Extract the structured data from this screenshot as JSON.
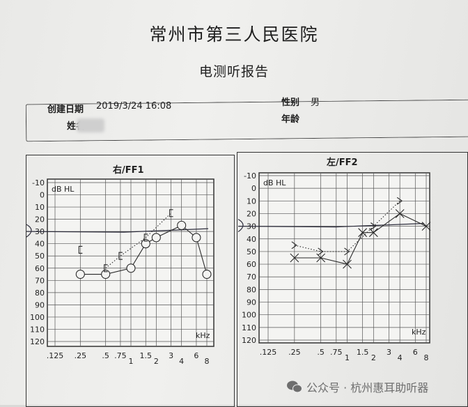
{
  "header": {
    "title": "常州市第三人民医院",
    "subtitle": "电测听报告"
  },
  "info": {
    "date_label": "创建日期",
    "date_value": "2019/3/24 16:08",
    "name_label": "姓名",
    "name_value": "",
    "sex_label": "性别",
    "sex_value": "男",
    "age_label": "年龄",
    "age_value": ""
  },
  "watermark": {
    "icon": "wechat-icon",
    "text": "公众号 · 杭州惠耳助听器"
  },
  "chart_data": [
    {
      "type": "line",
      "title": "右/FF1",
      "ylabel": "dB HL",
      "xlabel": "kHz",
      "x_scale": "log",
      "y_inverted": true,
      "ylim": [
        -10,
        120
      ],
      "yticks": [
        -10,
        0,
        10,
        20,
        30,
        40,
        50,
        60,
        70,
        80,
        90,
        100,
        110,
        120
      ],
      "xticks": [
        {
          "v": 0.125,
          "label": ".125",
          "row": 0
        },
        {
          "v": 0.25,
          "label": ".25",
          "row": 0
        },
        {
          "v": 0.5,
          "label": ".5",
          "row": 0
        },
        {
          "v": 0.75,
          "label": ".75",
          "row": 0
        },
        {
          "v": 1,
          "label": "1",
          "row": 1
        },
        {
          "v": 1.5,
          "label": "1.5",
          "row": 0
        },
        {
          "v": 2,
          "label": "2",
          "row": 1
        },
        {
          "v": 3,
          "label": "3",
          "row": 0
        },
        {
          "v": 4,
          "label": "4",
          "row": 1
        },
        {
          "v": 6,
          "label": "6",
          "row": 0
        },
        {
          "v": 8,
          "label": "8",
          "row": 1
        }
      ],
      "grid": true,
      "hand_marked_level_db": 30,
      "series": [
        {
          "marker": "circle",
          "line": "solid",
          "color": "#2a2a2a",
          "x": [
            0.25,
            0.5,
            1,
            1.5,
            2,
            4,
            6,
            8
          ],
          "y": [
            65,
            65,
            60,
            40,
            35,
            25,
            35,
            65
          ]
        },
        {
          "marker": "bracket-left",
          "line": "dotted",
          "color": "#2a2a2a",
          "x": [
            0.25,
            0.5,
            0.75,
            1.5,
            3
          ],
          "y": [
            45,
            60,
            50,
            35,
            15
          ],
          "connect_from": 1
        }
      ]
    },
    {
      "type": "line",
      "title": "左/FF2",
      "ylabel": "dB HL",
      "xlabel": "kHz",
      "x_scale": "log",
      "y_inverted": true,
      "ylim": [
        -10,
        120
      ],
      "yticks": [
        -10,
        0,
        10,
        20,
        30,
        40,
        50,
        60,
        70,
        80,
        90,
        100,
        110,
        120
      ],
      "xticks": [
        {
          "v": 0.125,
          "label": ".125",
          "row": 0
        },
        {
          "v": 0.25,
          "label": ".25",
          "row": 0
        },
        {
          "v": 0.5,
          "label": ".5",
          "row": 0
        },
        {
          "v": 0.75,
          "label": ".75",
          "row": 0
        },
        {
          "v": 1,
          "label": "1",
          "row": 1
        },
        {
          "v": 1.5,
          "label": "1.5",
          "row": 0
        },
        {
          "v": 2,
          "label": "2",
          "row": 1
        },
        {
          "v": 3,
          "label": "3",
          "row": 0
        },
        {
          "v": 4,
          "label": "4",
          "row": 1
        },
        {
          "v": 6,
          "label": "6",
          "row": 0
        },
        {
          "v": 8,
          "label": "8",
          "row": 1
        }
      ],
      "grid": true,
      "hand_marked_level_db": 30,
      "series": [
        {
          "marker": "cross",
          "line": "solid",
          "color": "#2a2a2a",
          "x": [
            0.25,
            0.5,
            1,
            1.5,
            2,
            4,
            8
          ],
          "y": [
            55,
            55,
            60,
            35,
            35,
            20,
            30
          ]
        },
        {
          "marker": "chevron-right",
          "line": "dotted",
          "color": "#2a2a2a",
          "x": [
            0.25,
            0.5,
            1,
            2,
            4
          ],
          "y": [
            45,
            50,
            50,
            30,
            10
          ],
          "connect_from": 0
        }
      ]
    }
  ]
}
